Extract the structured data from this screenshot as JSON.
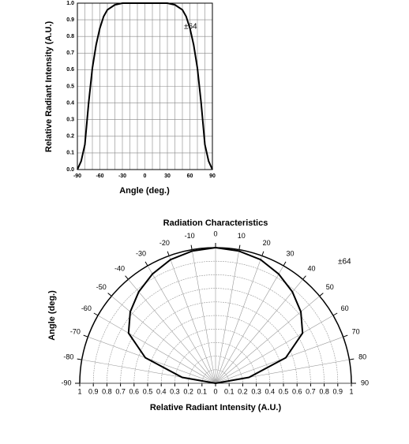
{
  "chart_data": [
    {
      "type": "line",
      "x_label": "Angle (deg.)",
      "y_label": "Relative Radiant Intensity (A.U.)",
      "annotation": "±64",
      "x": [
        -90,
        -85,
        -80,
        -75,
        -70,
        -65,
        -60,
        -55,
        -50,
        -40,
        -30,
        -20,
        -10,
        0,
        10,
        20,
        30,
        40,
        50,
        55,
        60,
        65,
        70,
        75,
        80,
        85,
        90
      ],
      "series": [
        {
          "name": null,
          "color": "#000000",
          "values": [
            0,
            0.05,
            0.15,
            0.4,
            0.61,
            0.75,
            0.85,
            0.92,
            0.96,
            0.99,
            1.0,
            1.0,
            1.0,
            1.0,
            1.0,
            1.0,
            1.0,
            0.99,
            0.96,
            0.92,
            0.85,
            0.75,
            0.61,
            0.4,
            0.15,
            0.05,
            0
          ]
        }
      ],
      "xlim": [
        -90,
        90
      ],
      "ylim": [
        0,
        1
      ],
      "xticks": [
        -90,
        -60,
        -30,
        0,
        30,
        60,
        90
      ],
      "xgrid": [
        -80,
        -70,
        -50,
        -40,
        -20,
        -10,
        10,
        20,
        40,
        50,
        70,
        80
      ],
      "yticks": [
        {
          "value": 0,
          "label": "0.0"
        },
        {
          "value": 0.1,
          "label": "0.1"
        },
        {
          "value": 0.2,
          "label": "0.2"
        },
        {
          "value": 0.3,
          "label": "0.3"
        },
        {
          "value": 0.4,
          "label": "0.4"
        },
        {
          "value": 0.5,
          "label": "0.5"
        },
        {
          "value": 0.6,
          "label": "0.6"
        },
        {
          "value": 0.7,
          "label": "0.7"
        },
        {
          "value": 0.8,
          "label": "0.8"
        },
        {
          "value": 0.9,
          "label": "0.9"
        },
        {
          "value": 1,
          "label": "1.0"
        }
      ],
      "grid": true
    },
    {
      "type": "polar",
      "title": "Radiation Characteristics",
      "x_label": "Relative Radiant Intensity (A.U.)",
      "y_label": "Angle (deg.)",
      "annotation": "±64",
      "x": [
        -90,
        -80,
        -70,
        -60,
        -50,
        -40,
        -30,
        -20,
        -10,
        0,
        10,
        20,
        30,
        40,
        50,
        60,
        70,
        80,
        90
      ],
      "series": [
        {
          "name": null,
          "color": "#000000",
          "values": [
            0,
            0.25,
            0.55,
            0.74,
            0.82,
            0.88,
            0.93,
            0.97,
            0.99,
            1.0,
            0.99,
            0.97,
            0.93,
            0.88,
            0.82,
            0.74,
            0.55,
            0.25,
            0
          ]
        }
      ],
      "angle_ticks": [
        -90,
        -80,
        -70,
        -60,
        -50,
        -40,
        -30,
        -20,
        -10,
        0,
        10,
        20,
        30,
        40,
        50,
        60,
        70,
        80,
        90
      ],
      "rlim": [
        0,
        1
      ],
      "rticks": [
        0,
        0.1,
        0.2,
        0.3,
        0.4,
        0.5,
        0.6,
        0.7,
        0.8,
        0.9,
        1
      ],
      "grid": true
    }
  ]
}
